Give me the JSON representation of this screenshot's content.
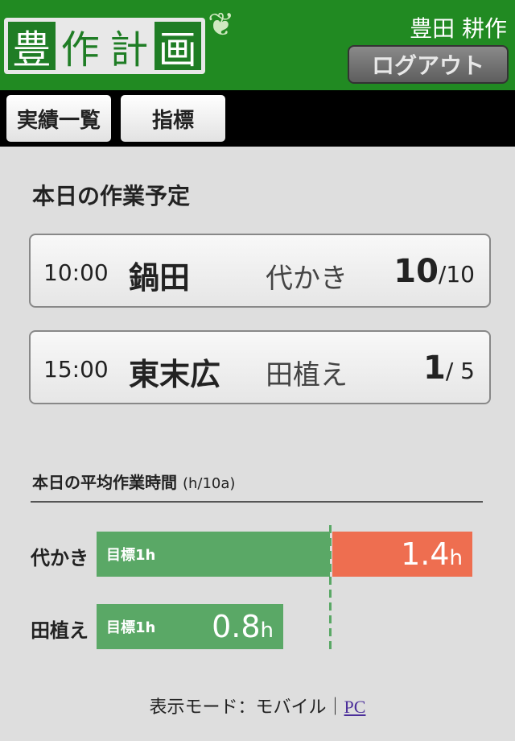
{
  "header": {
    "logo_chars": [
      "豊",
      "作",
      "計",
      "画"
    ],
    "logo_icon": "wheat-icon",
    "user_name": "豊田 耕作",
    "logout_label": "ログアウト"
  },
  "nav": {
    "items": [
      {
        "label": "実績一覧"
      },
      {
        "label": "指標"
      }
    ]
  },
  "schedule": {
    "title": "本日の作業予定",
    "tasks": [
      {
        "time": "10:00",
        "field": "鍋田",
        "work": "代かき",
        "done": "10",
        "sep": "/",
        "total": "10"
      },
      {
        "time": "15:00",
        "field": "東末広",
        "work": "田植え",
        "done": "1",
        "sep": "/",
        "total": " 5"
      }
    ]
  },
  "chart_data": {
    "type": "bar",
    "title": "本日の平均作業時間",
    "unit": "(h/10a)",
    "categories": [
      "代かき",
      "田植え"
    ],
    "values": [
      1.4,
      0.8
    ],
    "target": 1,
    "target_label": "目標1h",
    "value_labels": [
      "1.4",
      "0.8"
    ],
    "value_unit": "h",
    "colors": {
      "within": "#5aa866",
      "over": "#ee6e50"
    }
  },
  "footer": {
    "mode_text": "表示モード：モバイル｜",
    "pc_link": "PC"
  }
}
